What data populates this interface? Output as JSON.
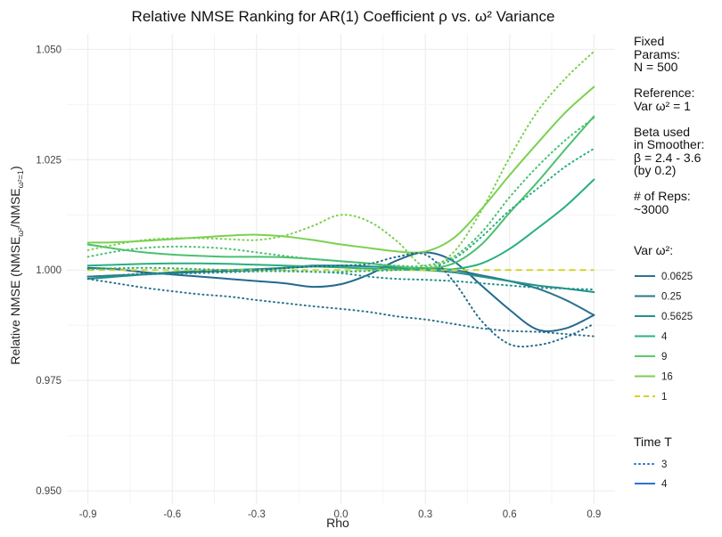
{
  "chart_data": {
    "type": "line",
    "title": "Relative NMSE Ranking for AR(1) Coefficient ρ vs. ω² Variance",
    "xlabel": "Rho",
    "ylabel_main": "Relative NMSE (NMSE",
    "ylabel_sub1": "ω²",
    "ylabel_mid": "/NMSE",
    "ylabel_sub2": "ω²=1",
    "ylabel_end": ")",
    "xlim": [
      -0.975,
      0.975
    ],
    "ylim": [
      0.947,
      1.0535
    ],
    "x_ticks": [
      -0.9,
      -0.6,
      -0.3,
      0,
      0.3,
      0.6,
      0.9
    ],
    "x_tick_labels": [
      "-0.9",
      "-0.6",
      "-0.3",
      "0.0",
      "0.3",
      "0.6",
      "0.9"
    ],
    "y_ticks": [
      0.95,
      0.975,
      1.0,
      1.025,
      1.05
    ],
    "y_tick_labels": [
      "0.950",
      "0.975",
      "1.000",
      "1.025",
      "1.050"
    ],
    "grid": true,
    "x": [
      -0.9,
      -0.8,
      -0.7,
      -0.6,
      -0.5,
      -0.4,
      -0.3,
      -0.2,
      -0.1,
      0.0,
      0.1,
      0.2,
      0.3,
      0.4,
      0.5,
      0.6,
      0.7,
      0.8,
      0.9
    ],
    "annotation_text": [
      "Fixed",
      "Params:",
      "N = 500",
      "",
      "Reference:",
      "Var ω² = 1",
      "",
      "Beta used",
      "in Smoother:",
      "β = 2.4 - 3.6",
      "(by 0.2)",
      "",
      "# of Reps:",
      "~3000"
    ],
    "legend_var": {
      "title": "Var ω²:",
      "entries": [
        {
          "label": "0.0625",
          "color": "#2c728e",
          "dash": "solid"
        },
        {
          "label": "0.25",
          "color": "#2a788e",
          "dash": "solid"
        },
        {
          "label": "0.5625",
          "color": "#21918c",
          "dash": "solid"
        },
        {
          "label": "4",
          "color": "#2db27d",
          "dash": "solid"
        },
        {
          "label": "9",
          "color": "#5ec962",
          "dash": "solid"
        },
        {
          "label": "16",
          "color": "#7ad151",
          "dash": "solid"
        },
        {
          "label": "1",
          "color": "#d2d22a",
          "dash": "dashed"
        }
      ]
    },
    "legend_time": {
      "title": "Time T",
      "entries": [
        {
          "label": "3",
          "color": "#2f6fd8",
          "dash": "dotted"
        },
        {
          "label": "4",
          "color": "#2f6fd8",
          "dash": "solid"
        }
      ]
    },
    "series": [
      {
        "var": "0.0625",
        "T": "4",
        "color": "#2c728e",
        "values": [
          0.9985,
          0.9988,
          0.999,
          0.9993,
          0.9996,
          0.9998,
          1.0,
          1.0005,
          1.001,
          1.001,
          1.0008,
          1.0006,
          1.0004,
          1.0,
          0.9988,
          0.9975,
          0.9958,
          0.9932,
          0.9898
        ]
      },
      {
        "var": "0.25",
        "T": "4",
        "color": "#23698e",
        "values": [
          1.0005,
          1.0002,
          0.9995,
          0.999,
          0.9985,
          0.998,
          0.9975,
          0.997,
          0.9962,
          0.9968,
          0.999,
          1.0022,
          1.004,
          1.002,
          0.9965,
          0.991,
          0.9865,
          0.9868,
          0.9898
        ]
      },
      {
        "var": "0.5625",
        "T": "4",
        "color": "#21918c",
        "values": [
          0.998,
          0.9985,
          0.999,
          0.9995,
          0.9998,
          1.0,
          1.0002,
          1.0005,
          1.0008,
          1.001,
          1.0008,
          1.0005,
          1.0,
          0.9995,
          0.9985,
          0.9975,
          0.9965,
          0.9958,
          0.995
        ]
      },
      {
        "var": "4",
        "T": "4",
        "color": "#29af7f",
        "values": [
          1.001,
          1.0012,
          1.0014,
          1.0015,
          1.0015,
          1.0014,
          1.0012,
          1.001,
          1.0008,
          1.0006,
          1.0003,
          1.0001,
          1.0,
          1.0002,
          1.0015,
          1.0048,
          1.0095,
          1.0145,
          1.0205
        ]
      },
      {
        "var": "9",
        "T": "4",
        "color": "#4ac16d",
        "values": [
          1.0058,
          1.0048,
          1.004,
          1.0035,
          1.0032,
          1.003,
          1.003,
          1.0029,
          1.0025,
          1.002,
          1.0015,
          1.0008,
          1.0004,
          1.0015,
          1.0058,
          1.013,
          1.02,
          1.0275,
          1.0348
        ]
      },
      {
        "var": "16",
        "T": "4",
        "color": "#7ad151",
        "values": [
          1.0062,
          1.0063,
          1.0066,
          1.007,
          1.0074,
          1.0078,
          1.008,
          1.0076,
          1.0068,
          1.0058,
          1.005,
          1.0042,
          1.0042,
          1.0072,
          1.0138,
          1.0215,
          1.0288,
          1.0358,
          1.0415
        ]
      },
      {
        "var": "1",
        "T": "4",
        "color": "#d2d22a",
        "dashed": true,
        "values": [
          1.0,
          1.0,
          1.0,
          1.0,
          1.0,
          1.0,
          1.0,
          1.0,
          1.0,
          1.0,
          1.0,
          1.0,
          1.0,
          1.0,
          1.0,
          1.0,
          1.0,
          1.0,
          1.0
        ]
      },
      {
        "var": "0.0625",
        "T": "3",
        "color": "#2c728e",
        "values": [
          0.998,
          0.997,
          0.996,
          0.9952,
          0.9945,
          0.994,
          0.9932,
          0.9925,
          0.9918,
          0.9912,
          0.9905,
          0.9895,
          0.9888,
          0.9878,
          0.9868,
          0.9862,
          0.986,
          0.9855,
          0.985
        ]
      },
      {
        "var": "0.25",
        "T": "3",
        "color": "#23698e",
        "values": [
          0.9985,
          0.9988,
          0.9992,
          0.9994,
          0.9996,
          0.9998,
          1.0,
          1.0004,
          1.0008,
          1.001,
          1.0014,
          1.003,
          1.0035,
          0.9975,
          0.9885,
          0.9832,
          0.983,
          0.9848,
          0.9878
        ]
      },
      {
        "var": "0.5625",
        "T": "3",
        "color": "#21918c",
        "values": [
          0.9985,
          0.9987,
          0.999,
          0.9992,
          0.9993,
          0.9995,
          0.9997,
          0.9998,
          0.9996,
          0.9993,
          0.9985,
          0.998,
          0.9978,
          0.9975,
          0.997,
          0.9965,
          0.996,
          0.9958,
          0.9956
        ]
      },
      {
        "var": "4",
        "T": "3",
        "color": "#29af7f",
        "values": [
          1.0002,
          1.0004,
          1.0005,
          1.0004,
          1.0002,
          1.0,
          0.9998,
          0.9997,
          0.9996,
          0.9996,
          0.9998,
          1.0,
          1.0005,
          1.0025,
          1.0075,
          1.0135,
          1.0185,
          1.0235,
          1.0275
        ]
      },
      {
        "var": "9",
        "T": "3",
        "color": "#4ac16d",
        "values": [
          1.003,
          1.0042,
          1.005,
          1.0053,
          1.0052,
          1.0048,
          1.004,
          1.0032,
          1.0025,
          1.002,
          1.0015,
          1.001,
          1.001,
          1.003,
          1.0085,
          1.0165,
          1.0235,
          1.0295,
          1.0345
        ]
      },
      {
        "var": "16",
        "T": "3",
        "color": "#7ad151",
        "values": [
          1.0045,
          1.0058,
          1.0068,
          1.0072,
          1.0072,
          1.007,
          1.0068,
          1.0078,
          1.01,
          1.0125,
          1.011,
          1.0065,
          1.0008,
          1.004,
          1.0135,
          1.0255,
          1.036,
          1.0435,
          1.0495
        ]
      }
    ]
  }
}
